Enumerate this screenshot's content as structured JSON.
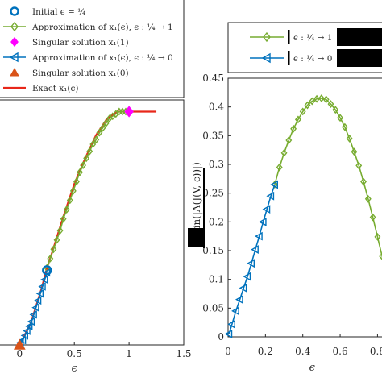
{
  "colors": {
    "blue": "#0072BD",
    "orange": "#D95319",
    "green": "#77AC30",
    "magenta": "#FF00FF",
    "red": "#E8271A",
    "axis": "#262626"
  },
  "chart_data": [
    {
      "type": "line",
      "xlabel": "ϵ",
      "ylabel": "",
      "xlim": [
        -0.4,
        1.5
      ],
      "ylim": [
        0,
        1.05
      ],
      "xticks": [
        "0",
        "0.5",
        "1",
        "1.5"
      ],
      "x_tick_values": [
        0,
        0.5,
        1,
        1.5
      ],
      "grid": false,
      "legend_position": "top-left (outside)",
      "legend": [
        "Initial ϵ = ¼",
        "Approximation of x₁(ϵ), ϵ : ¼ → 1",
        "Singular solution x₁(1)",
        "Approximation of x₁(ϵ), ϵ : ¼ → 0",
        "Singular solution x₁(0)",
        "Exact x₁(ϵ)"
      ],
      "series": [
        {
          "name": "Exact x₁(ϵ)",
          "marker": "none",
          "x": [
            0,
            0.1,
            0.2,
            0.25,
            0.3,
            0.4,
            0.5,
            0.6,
            0.7,
            0.8,
            0.9,
            0.95,
            1.0,
            1.1,
            1.25
          ],
          "y": [
            0,
            0.09,
            0.24,
            0.33,
            0.4,
            0.55,
            0.69,
            0.8,
            0.9,
            0.97,
            1.0,
            1.0,
            1.0,
            1.0,
            1.0
          ]
        },
        {
          "name": "Approximation of x₁(ϵ), ϵ : ¼ → 1",
          "marker": "diamond",
          "x": [
            0.25,
            0.28,
            0.31,
            0.34,
            0.37,
            0.4,
            0.43,
            0.46,
            0.49,
            0.52,
            0.55,
            0.58,
            0.61,
            0.64,
            0.67,
            0.7,
            0.73,
            0.76,
            0.79,
            0.82,
            0.85,
            0.88,
            0.91,
            0.94,
            0.97,
            1.0
          ],
          "y": [
            0.33,
            0.37,
            0.41,
            0.45,
            0.49,
            0.54,
            0.58,
            0.62,
            0.66,
            0.7,
            0.74,
            0.77,
            0.8,
            0.83,
            0.86,
            0.88,
            0.91,
            0.93,
            0.95,
            0.97,
            0.98,
            0.99,
            1.0,
            1.0,
            1.0,
            1.0
          ]
        },
        {
          "name": "Approximation of x₁(ϵ), ϵ : ¼ → 0",
          "marker": "triangle-left",
          "x": [
            0.25,
            0.23,
            0.21,
            0.19,
            0.17,
            0.15,
            0.13,
            0.11,
            0.09,
            0.07,
            0.05,
            0.03,
            0.01
          ],
          "y": [
            0.31,
            0.28,
            0.25,
            0.22,
            0.19,
            0.16,
            0.13,
            0.1,
            0.08,
            0.06,
            0.04,
            0.02,
            0.01
          ]
        },
        {
          "name": "Initial ϵ = ¼",
          "marker": "circle",
          "x": [
            0.25
          ],
          "y": [
            0.32
          ]
        },
        {
          "name": "Singular solution x₁(1)",
          "marker": "diamond-filled",
          "x": [
            1.0
          ],
          "y": [
            1.0
          ]
        },
        {
          "name": "Singular solution x₁(0)",
          "marker": "triangle-up-filled",
          "x": [
            0.0
          ],
          "y": [
            0.0
          ]
        }
      ]
    },
    {
      "type": "line",
      "xlabel": "ϵ",
      "ylabel": "min(|Λ(J(V, ϵ))|)",
      "xlim": [
        0,
        0.85
      ],
      "ylim": [
        0,
        0.45
      ],
      "xticks": [
        "0",
        "0.2",
        "0.4",
        "0.6",
        "0.8"
      ],
      "x_tick_values": [
        0,
        0.2,
        0.4,
        0.6,
        0.8
      ],
      "yticks": [
        "0",
        "0.05",
        "0.1",
        "0.15",
        "0.2",
        "0.25",
        "0.3",
        "0.35",
        "0.4",
        "0.45"
      ],
      "y_tick_values": [
        0,
        0.05,
        0.1,
        0.15,
        0.2,
        0.25,
        0.3,
        0.35,
        0.4,
        0.45
      ],
      "grid": false,
      "legend_position": "top (outside)",
      "legend": [
        "ϵ : ¼ → 1",
        "ϵ : ¼ → 0"
      ],
      "series": [
        {
          "name": "ϵ : ¼ → 1",
          "marker": "diamond",
          "x": [
            0.25,
            0.275,
            0.3,
            0.325,
            0.35,
            0.375,
            0.4,
            0.425,
            0.45,
            0.475,
            0.5,
            0.525,
            0.55,
            0.575,
            0.6,
            0.625,
            0.65,
            0.675,
            0.7,
            0.725,
            0.75,
            0.775,
            0.8,
            0.825,
            0.85
          ],
          "y": [
            0.265,
            0.295,
            0.32,
            0.342,
            0.362,
            0.378,
            0.392,
            0.403,
            0.41,
            0.414,
            0.415,
            0.413,
            0.405,
            0.395,
            0.381,
            0.365,
            0.345,
            0.322,
            0.298,
            0.27,
            0.24,
            0.208,
            0.174,
            0.14,
            0.105
          ]
        },
        {
          "name": "ϵ : ¼ → 0",
          "marker": "triangle-left",
          "x": [
            0.25,
            0.229,
            0.208,
            0.188,
            0.167,
            0.146,
            0.125,
            0.104,
            0.083,
            0.063,
            0.042,
            0.021,
            0.005
          ],
          "y": [
            0.265,
            0.245,
            0.222,
            0.2,
            0.175,
            0.152,
            0.128,
            0.105,
            0.085,
            0.065,
            0.045,
            0.022,
            0.005
          ]
        }
      ]
    }
  ]
}
